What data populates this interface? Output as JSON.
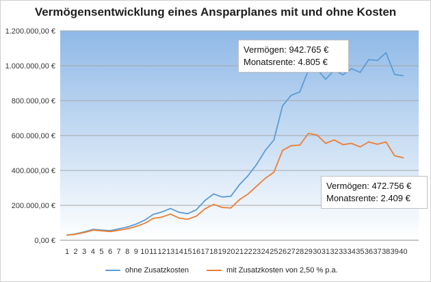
{
  "chart_data": {
    "type": "line",
    "title": "Vermögensentwicklung eines Ansparplanes mit und ohne Kosten",
    "xlabel": "",
    "ylabel": "",
    "x": [
      1,
      2,
      3,
      4,
      5,
      6,
      7,
      8,
      9,
      10,
      11,
      12,
      13,
      14,
      15,
      16,
      17,
      18,
      19,
      20,
      21,
      22,
      23,
      24,
      25,
      26,
      27,
      28,
      29,
      30,
      31,
      32,
      33,
      34,
      35,
      36,
      37,
      38,
      39,
      40
    ],
    "x_tick_labels": [
      "1",
      "2",
      "3",
      "4",
      "5",
      "6",
      "7",
      "8",
      "9",
      "10",
      "11",
      "12",
      "13",
      "14",
      "15",
      "16",
      "17",
      "18",
      "19",
      "20",
      "21",
      "22",
      "23",
      "24",
      "25",
      "26",
      "27",
      "28",
      "29",
      "30",
      "31",
      "32",
      "33",
      "34",
      "35",
      "36",
      "37",
      "38",
      "39",
      "40"
    ],
    "ylim": [
      0,
      1200000
    ],
    "y_ticks": [
      0,
      200000,
      400000,
      600000,
      800000,
      1000000,
      1200000
    ],
    "y_tick_labels": [
      "0,00 €",
      "200.000,00 €",
      "400.000,00 €",
      "600.000,00 €",
      "800.000,00 €",
      "1.000.000,00 €",
      "1.200.000,00 €"
    ],
    "grid": true,
    "legend_position": "bottom",
    "series": [
      {
        "name": "ohne Zusatzkosten",
        "color": "#5b9bd5",
        "values": [
          30000,
          36000,
          48000,
          62000,
          58000,
          55000,
          65000,
          76000,
          92000,
          115000,
          148000,
          162000,
          182000,
          160000,
          152000,
          175000,
          228000,
          265000,
          248000,
          252000,
          318000,
          370000,
          435000,
          515000,
          575000,
          770000,
          830000,
          850000,
          975000,
          980000,
          922000,
          975000,
          948000,
          983000,
          962000,
          1035000,
          1030000,
          1075000,
          950000,
          942765
        ]
      },
      {
        "name": "mit Zusatzkosten von 2,50 % p.a.",
        "color": "#ed7d31",
        "values": [
          29000,
          34000,
          44000,
          58000,
          54000,
          50000,
          57000,
          66000,
          79000,
          97000,
          125000,
          133000,
          150000,
          127000,
          120000,
          138000,
          180000,
          205000,
          188000,
          185000,
          232000,
          265000,
          310000,
          355000,
          390000,
          515000,
          542000,
          545000,
          612000,
          603000,
          555000,
          575000,
          548000,
          555000,
          535000,
          563000,
          550000,
          563000,
          484000,
          472756
        ]
      }
    ],
    "annotations": [
      {
        "lines": [
          "Vermögen: 942.765 €",
          "Monatsrente:  4.805 €"
        ]
      },
      {
        "lines": [
          "Vermögen: 472.756 €",
          "Monatsrente:  2.409 €"
        ]
      }
    ]
  }
}
